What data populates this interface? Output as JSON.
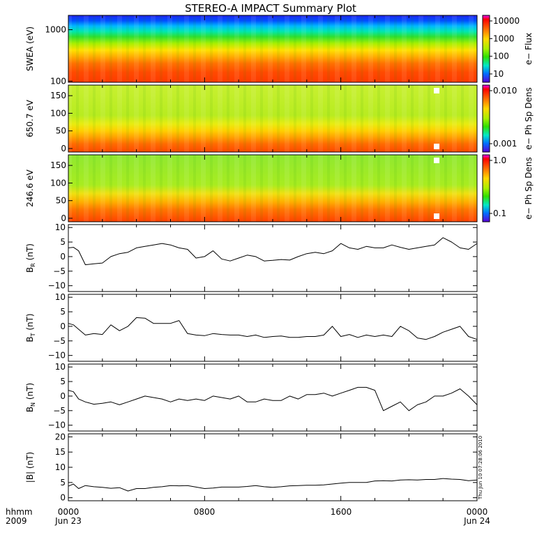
{
  "title": "STEREO-A IMPACT Summary Plot",
  "footer": {
    "hhmm_label": "hhmm",
    "year_label": "2009",
    "x_ticks": [
      "0000",
      "0800",
      "1600",
      "0000"
    ],
    "x_dates": [
      "Jun 23",
      "Jun 24"
    ]
  },
  "timestamp": "Thu Jun 10 07:28:06 2010",
  "chart_data": [
    {
      "type": "heatmap",
      "ylabel": "SWEA (eV)",
      "ylog": true,
      "ylim": [
        95,
        1900
      ],
      "yticks": [
        "1000",
        "100"
      ],
      "colorbar": {
        "label": "e− Flux",
        "log": true,
        "ticks": [
          "10000",
          "1000",
          "100",
          "10"
        ]
      }
    },
    {
      "type": "heatmap",
      "ylabel": "650.7 eV",
      "ylim": [
        -10,
        180
      ],
      "yticks": [
        "150",
        "100",
        "50",
        "0"
      ],
      "colorbar": {
        "label": "e− Ph Sp Dens",
        "log": true,
        "ticks": [
          "0.010",
          "0.001"
        ]
      }
    },
    {
      "type": "heatmap",
      "ylabel": "246.6 eV",
      "ylim": [
        -10,
        180
      ],
      "yticks": [
        "150",
        "100",
        "50",
        "0"
      ],
      "colorbar": {
        "label": "e− Ph Sp Dens",
        "log": true,
        "ticks": [
          "1.0",
          "0.1"
        ]
      }
    },
    {
      "type": "line",
      "ylabel": "B",
      "ysub": "R",
      "yunit": "(nT)",
      "ylim": [
        -12,
        11
      ],
      "yticks": [
        "10",
        "5",
        "0",
        "−5",
        "−10"
      ],
      "x": [
        0,
        0.3,
        0.6,
        1,
        1.5,
        2,
        2.5,
        3,
        3.5,
        4,
        4.5,
        5,
        5.5,
        6,
        6.5,
        7,
        7.5,
        8,
        8.5,
        9,
        9.5,
        10,
        10.5,
        11,
        11.5,
        12,
        12.5,
        13,
        13.5,
        14,
        14.5,
        15,
        15.5,
        16,
        16.5,
        17,
        17.5,
        18,
        18.5,
        19,
        19.5,
        20,
        20.5,
        21,
        21.5,
        22,
        22.5,
        23,
        23.5,
        24
      ],
      "y": [
        3,
        3.2,
        2,
        -2.8,
        -2.5,
        -2.2,
        0,
        1,
        1.5,
        3,
        3.5,
        4,
        4.5,
        4,
        3,
        2.5,
        -0.5,
        0,
        2,
        -0.8,
        -1.5,
        -0.5,
        0.5,
        0,
        -1.5,
        -1.3,
        -1,
        -1.2,
        0,
        1,
        1.5,
        1,
        2,
        4.5,
        3,
        2.5,
        3.5,
        3,
        3,
        4,
        3.2,
        2.5,
        3,
        3.5,
        4,
        6.5,
        5,
        3,
        2.5,
        4.5
      ]
    },
    {
      "type": "line",
      "ylabel": "B",
      "ysub": "T",
      "yunit": "(nT)",
      "ylim": [
        -12,
        11
      ],
      "yticks": [
        "10",
        "5",
        "0",
        "−5",
        "−10"
      ],
      "x": [
        0,
        0.3,
        0.6,
        1,
        1.5,
        2,
        2.5,
        3,
        3.5,
        4,
        4.5,
        5,
        5.5,
        6,
        6.5,
        7,
        7.5,
        8,
        8.5,
        9,
        9.5,
        10,
        10.5,
        11,
        11.5,
        12,
        12.5,
        13,
        13.5,
        14,
        14.5,
        15,
        15.5,
        16,
        16.5,
        17,
        17.5,
        18,
        18.5,
        19,
        19.5,
        20,
        20.5,
        21,
        21.5,
        22,
        22.5,
        23,
        23.5,
        24
      ],
      "y": [
        1,
        0.5,
        -1,
        -3,
        -2.5,
        -2.8,
        0.5,
        -1.5,
        0,
        3,
        2.8,
        1,
        1,
        1,
        2,
        -2.5,
        -3,
        -3.2,
        -2.5,
        -2.8,
        -3,
        -3,
        -3.5,
        -3,
        -3.8,
        -3.5,
        -3.3,
        -3.8,
        -3.8,
        -3.5,
        -3.5,
        -3,
        0,
        -3.5,
        -2.8,
        -3.8,
        -3,
        -3.5,
        -3,
        -3.5,
        0,
        -1.5,
        -4,
        -4.5,
        -3.5,
        -2,
        -1,
        0,
        -3.5,
        -4.5
      ]
    },
    {
      "type": "line",
      "ylabel": "B",
      "ysub": "N",
      "yunit": "(nT)",
      "ylim": [
        -12,
        11
      ],
      "yticks": [
        "10",
        "5",
        "0",
        "−5",
        "−10"
      ],
      "x": [
        0,
        0.3,
        0.6,
        1,
        1.5,
        2,
        2.5,
        3,
        3.5,
        4,
        4.5,
        5,
        5.5,
        6,
        6.5,
        7,
        7.5,
        8,
        8.5,
        9,
        9.5,
        10,
        10.5,
        11,
        11.5,
        12,
        12.5,
        13,
        13.5,
        14,
        14.5,
        15,
        15.5,
        16,
        16.5,
        17,
        17.5,
        18,
        18.5,
        19,
        19.5,
        20,
        20.5,
        21,
        21.5,
        22,
        22.5,
        23,
        23.5,
        24
      ],
      "y": [
        2,
        1.5,
        -1,
        -2,
        -2.8,
        -2.5,
        -2,
        -3,
        -2,
        -1,
        0,
        -0.5,
        -1,
        -2,
        -1,
        -1.5,
        -1,
        -1.5,
        0,
        -0.5,
        -1,
        0,
        -2,
        -2,
        -1,
        -1.5,
        -1.5,
        0,
        -1,
        0.5,
        0.5,
        1,
        0,
        1,
        2,
        3,
        3,
        2,
        -5,
        -3.5,
        -2,
        -5,
        -3,
        -2,
        0,
        0,
        1,
        2.5,
        0,
        -3
      ]
    },
    {
      "type": "line",
      "ylabel": "|B|",
      "yunit": "(nT)",
      "ylim": [
        -1,
        21
      ],
      "yticks": [
        "20",
        "15",
        "10",
        "5",
        "0"
      ],
      "x": [
        0,
        0.3,
        0.6,
        1,
        1.5,
        2,
        2.5,
        3,
        3.5,
        4,
        4.5,
        5,
        5.5,
        6,
        6.5,
        7,
        7.5,
        8,
        8.5,
        9,
        9.5,
        10,
        10.5,
        11,
        11.5,
        12,
        12.5,
        13,
        13.5,
        14,
        14.5,
        15,
        15.5,
        16,
        16.5,
        17,
        17.5,
        18,
        18.5,
        19,
        19.5,
        20,
        20.5,
        21,
        21.5,
        22,
        22.5,
        23,
        23.5,
        24
      ],
      "y": [
        3.8,
        4.5,
        3,
        4,
        3.6,
        3.4,
        3.1,
        3.3,
        2.2,
        3,
        3,
        3.4,
        3.6,
        4,
        3.9,
        4,
        3.5,
        3,
        3.2,
        3.5,
        3.5,
        3.5,
        3.7,
        4,
        3.6,
        3.4,
        3.6,
        3.9,
        4,
        4.1,
        4.1,
        4.2,
        4.5,
        4.8,
        5,
        5,
        5,
        5.5,
        5.6,
        5.5,
        5.8,
        5.9,
        5.8,
        6,
        6,
        6.3,
        6.1,
        6,
        5.6,
        5.8
      ]
    }
  ]
}
